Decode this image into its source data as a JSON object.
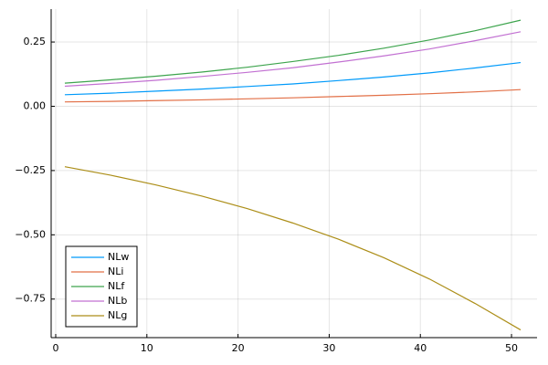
{
  "chart_data": {
    "type": "line",
    "x": [
      1,
      6,
      11,
      16,
      21,
      26,
      31,
      36,
      41,
      46,
      51
    ],
    "series": [
      {
        "name": "NLw",
        "color": "#009afa",
        "values": [
          0.045,
          0.051,
          0.059,
          0.067,
          0.077,
          0.087,
          0.1,
          0.114,
          0.13,
          0.149,
          0.17
        ]
      },
      {
        "name": "NLi",
        "color": "#e26f46",
        "values": [
          0.017,
          0.019,
          0.022,
          0.025,
          0.029,
          0.033,
          0.038,
          0.043,
          0.049,
          0.056,
          0.065
        ]
      },
      {
        "name": "NLf",
        "color": "#3da44d",
        "values": [
          0.09,
          0.103,
          0.117,
          0.133,
          0.152,
          0.174,
          0.198,
          0.226,
          0.258,
          0.294,
          0.335
        ]
      },
      {
        "name": "NLb",
        "color": "#c271d2",
        "values": [
          0.078,
          0.089,
          0.101,
          0.116,
          0.132,
          0.15,
          0.172,
          0.196,
          0.223,
          0.255,
          0.29
        ]
      },
      {
        "name": "NLg",
        "color": "#ac8e18",
        "values": [
          -0.235,
          -0.268,
          -0.306,
          -0.349,
          -0.398,
          -0.454,
          -0.517,
          -0.589,
          -0.672,
          -0.767,
          -0.87
        ]
      }
    ],
    "xlim": [
      -0.5,
      52.8
    ],
    "ylim": [
      -0.9,
      0.378
    ],
    "xticks": [
      0,
      10,
      20,
      30,
      40,
      50
    ],
    "yticks": [
      {
        "value": 0.25,
        "label": "0.25"
      },
      {
        "value": 0,
        "label": "0.00"
      },
      {
        "value": -0.25,
        "label": "−0.25"
      },
      {
        "value": -0.5,
        "label": "−0.50"
      },
      {
        "value": -0.75,
        "label": "−0.75"
      }
    ],
    "grid": true,
    "legend": "bottom-left"
  }
}
